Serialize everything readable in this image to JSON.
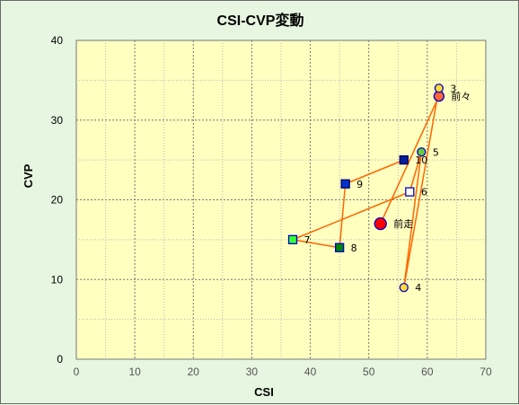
{
  "chart_data": {
    "type": "scatter",
    "title": "CSI-CVP変動",
    "xlabel": "CSI",
    "ylabel": "CVP",
    "xlim": [
      0,
      70
    ],
    "ylim": [
      0,
      40
    ],
    "xticks": [
      "0",
      "10",
      "20",
      "30",
      "40",
      "50",
      "60",
      "70"
    ],
    "yticks": [
      "0",
      "10",
      "20",
      "30",
      "40"
    ],
    "grid": true,
    "plot_bg": "#ffffc0",
    "outer_bg": "#e6f6e0",
    "line_color": "#ff6600",
    "path_order": [
      "前走",
      "前々",
      "3",
      "4",
      "5",
      "6",
      "7",
      "8",
      "9",
      "10"
    ],
    "points": [
      {
        "label": "前走",
        "x": 52,
        "y": 17,
        "marker": "circle",
        "size": "large",
        "fill": "#ff0000",
        "stroke": "#0000cc"
      },
      {
        "label": "前々",
        "x": 62,
        "y": 33,
        "marker": "circle",
        "size": "medium",
        "fill": "#ff6633",
        "stroke": "#0000cc"
      },
      {
        "label": "3",
        "x": 62,
        "y": 34,
        "marker": "circle",
        "size": "small",
        "fill": "#ffdd33",
        "stroke": "#0000cc"
      },
      {
        "label": "4",
        "x": 56,
        "y": 9,
        "marker": "circle",
        "size": "small",
        "fill": "#ffdd33",
        "stroke": "#0000cc"
      },
      {
        "label": "5",
        "x": 59,
        "y": 26,
        "marker": "circle",
        "size": "small",
        "fill": "#66cc33",
        "stroke": "#0000cc"
      },
      {
        "label": "6",
        "x": 57,
        "y": 21,
        "marker": "square",
        "size": "small",
        "fill": "#ffffff",
        "stroke": "#0000cc"
      },
      {
        "label": "7",
        "x": 37,
        "y": 15,
        "marker": "square",
        "size": "small",
        "fill": "#33ff33",
        "stroke": "#0000cc"
      },
      {
        "label": "8",
        "x": 45,
        "y": 14,
        "marker": "square",
        "size": "small",
        "fill": "#008800",
        "stroke": "#0000cc"
      },
      {
        "label": "9",
        "x": 46,
        "y": 22,
        "marker": "square",
        "size": "small",
        "fill": "#0033cc",
        "stroke": "#000066"
      },
      {
        "label": "10",
        "x": 56,
        "y": 25,
        "marker": "square",
        "size": "small",
        "fill": "#002299",
        "stroke": "#000066"
      }
    ]
  }
}
